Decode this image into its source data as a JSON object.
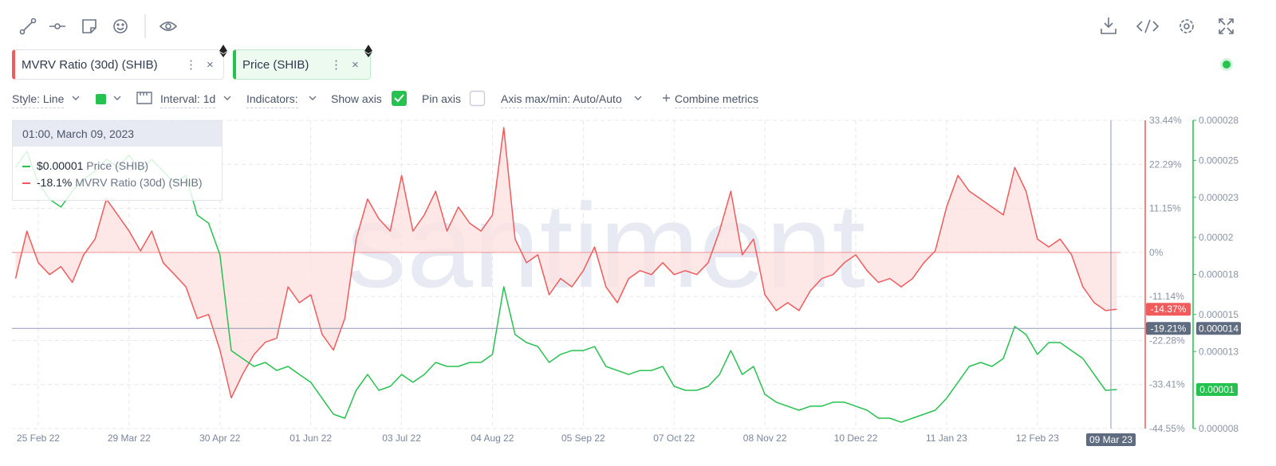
{
  "ui": {
    "controls": {
      "style": "Style: Line",
      "interval": "Interval: 1d",
      "indicators": "Indicators:",
      "show_axis": "Show axis",
      "pin_axis": "Pin axis",
      "axis_minmax": "Axis max/min: Auto/Auto",
      "combine": "Combine metrics"
    },
    "watermark": "santiment",
    "tooltip": {
      "time": "01:00, March 09, 2023",
      "price": "$0.00001",
      "mvrv": "-18.1%"
    }
  },
  "chart_data": {
    "type": "line",
    "categories": [
      null,
      null,
      "25 Feb 22",
      null,
      null,
      null,
      null,
      null,
      null,
      null,
      "29 Mar 22",
      null,
      null,
      null,
      null,
      null,
      null,
      null,
      "30 Apr 22",
      null,
      null,
      null,
      null,
      null,
      null,
      null,
      "01 Jun 22",
      null,
      null,
      null,
      null,
      null,
      null,
      null,
      "03 Jul 22",
      null,
      null,
      null,
      null,
      null,
      null,
      null,
      "04 Aug 22",
      null,
      null,
      null,
      null,
      null,
      null,
      null,
      "05 Sep 22",
      null,
      null,
      null,
      null,
      null,
      null,
      null,
      "07 Oct 22",
      null,
      null,
      null,
      null,
      null,
      null,
      null,
      "08 Nov 22",
      null,
      null,
      null,
      null,
      null,
      null,
      null,
      "10 Dec 22",
      null,
      null,
      null,
      null,
      null,
      null,
      null,
      "11 Jan 23",
      null,
      null,
      null,
      null,
      null,
      null,
      null,
      "12 Feb 23",
      null,
      null,
      null,
      null,
      null,
      null,
      null
    ],
    "series": [
      {
        "name": "MVRV Ratio (30d) (SHIB)",
        "color": "#f15b5b",
        "fill_color": "#fde1e1",
        "current_label": "-14.37%",
        "values": [
          -6.6,
          5.4,
          -2.6,
          -5.6,
          -3.6,
          -7.6,
          -0.6,
          3.4,
          13.5,
          9.5,
          5.4,
          0.4,
          5.4,
          -2.6,
          -5.6,
          -8.7,
          -16.7,
          -15.7,
          -24.7,
          -36.8,
          -30.8,
          -25.8,
          -22.7,
          -21.7,
          -8.7,
          -12.7,
          -10.7,
          -20.7,
          -24.7,
          -16.7,
          3.4,
          13.5,
          8.5,
          5.4,
          19.5,
          5.4,
          9.5,
          15.5,
          5.4,
          11.5,
          7.4,
          5.4,
          9.5,
          31.6,
          3.4,
          -2.6,
          -0.6,
          -10.7,
          -6.6,
          -8.7,
          -4.6,
          1.4,
          -8.7,
          -12.7,
          -6.6,
          -4.6,
          -5.6,
          -2.6,
          -5.6,
          -4.6,
          -5.6,
          -2.6,
          5.4,
          15.5,
          -0.6,
          3.4,
          -10.7,
          -14.7,
          -12.7,
          -14.7,
          -9.7,
          -6.6,
          -5.6,
          -2.6,
          -0.6,
          -4.6,
          -7.6,
          -6.6,
          -8.7,
          -6.6,
          -2.6,
          0.4,
          11.5,
          19.5,
          15.5,
          13.5,
          11.5,
          9.5,
          21.5,
          15.5,
          3.4,
          1.4,
          3.4,
          -0.6,
          -8.7,
          -12.7,
          -14.7,
          -14.37
        ]
      },
      {
        "name": "Price (SHIB)",
        "color": "#26c24f",
        "axis": "y2",
        "current_label": "0.00001",
        "values": [
          2.495e-05,
          2.598e-05,
          2.392e-05,
          2.288e-05,
          2.237e-05,
          2.34e-05,
          2.418e-05,
          2.469e-05,
          2.547e-05,
          2.495e-05,
          2.573e-05,
          2.469e-05,
          2.547e-05,
          2.469e-05,
          2.392e-05,
          2.443e-05,
          2.185e-05,
          2.133e-05,
          1.927e-05,
          1.306e-05,
          1.255e-05,
          1.203e-05,
          1.229e-05,
          1.177e-05,
          1.203e-05,
          1.151e-05,
          1.1e-05,
          9.96e-06,
          8.93e-06,
          8.67e-06,
          1.048e-05,
          1.151e-05,
          1.048e-05,
          1.074e-05,
          1.151e-05,
          1.1e-05,
          1.151e-05,
          1.229e-05,
          1.203e-05,
          1.203e-05,
          1.229e-05,
          1.229e-05,
          1.281e-05,
          1.72e-05,
          1.41e-05,
          1.358e-05,
          1.332e-05,
          1.229e-05,
          1.281e-05,
          1.306e-05,
          1.306e-05,
          1.332e-05,
          1.203e-05,
          1.177e-05,
          1.151e-05,
          1.177e-05,
          1.177e-05,
          1.203e-05,
          1.074e-05,
          1.048e-05,
          1.048e-05,
          1.074e-05,
          1.151e-05,
          1.306e-05,
          1.151e-05,
          1.203e-05,
          1.022e-05,
          9.71e-06,
          9.45e-06,
          9.19e-06,
          9.45e-06,
          9.45e-06,
          9.71e-06,
          9.71e-06,
          9.45e-06,
          9.19e-06,
          8.67e-06,
          8.67e-06,
          8.41e-06,
          8.67e-06,
          8.93e-06,
          9.19e-06,
          9.96e-06,
          1.1e-05,
          1.203e-05,
          1.229e-05,
          1.203e-05,
          1.255e-05,
          1.462e-05,
          1.41e-05,
          1.281e-05,
          1.358e-05,
          1.358e-05,
          1.306e-05,
          1.255e-05,
          1.151e-05,
          1.048e-05,
          1.053e-05
        ]
      }
    ],
    "ylim": [
      -44.55,
      33.44
    ],
    "yticks": [
      {
        "value": 33.44,
        "label": "33.44%"
      },
      {
        "value": 22.29,
        "label": "22.29%"
      },
      {
        "value": 11.15,
        "label": "11.15%"
      },
      {
        "value": 0,
        "label": "0%"
      },
      {
        "value": -11.14,
        "label": "-11.14%"
      },
      {
        "value": -22.28,
        "label": "-22.28%"
      },
      {
        "value": -33.41,
        "label": "-33.41%"
      },
      {
        "value": -44.55,
        "label": "-44.55%"
      }
    ],
    "y2lim": [
      8e-06,
      2.8e-05
    ],
    "y2ticks": [
      2.8e-05,
      {
        "value": 2.54e-05,
        "label": "0.000025"
      },
      2.3e-05,
      {
        "value": 2.04e-05,
        "label": "0.00002"
      },
      1.8e-05,
      {
        "value": 1.54e-05,
        "label": "0.000015"
      },
      1.3e-05,
      8e-06
    ],
    "grid": true,
    "crosshair": {
      "x_label": "09 Mar 23",
      "y": -19.21,
      "y_label": "-19.21%",
      "y2_label": "0.000014"
    }
  }
}
